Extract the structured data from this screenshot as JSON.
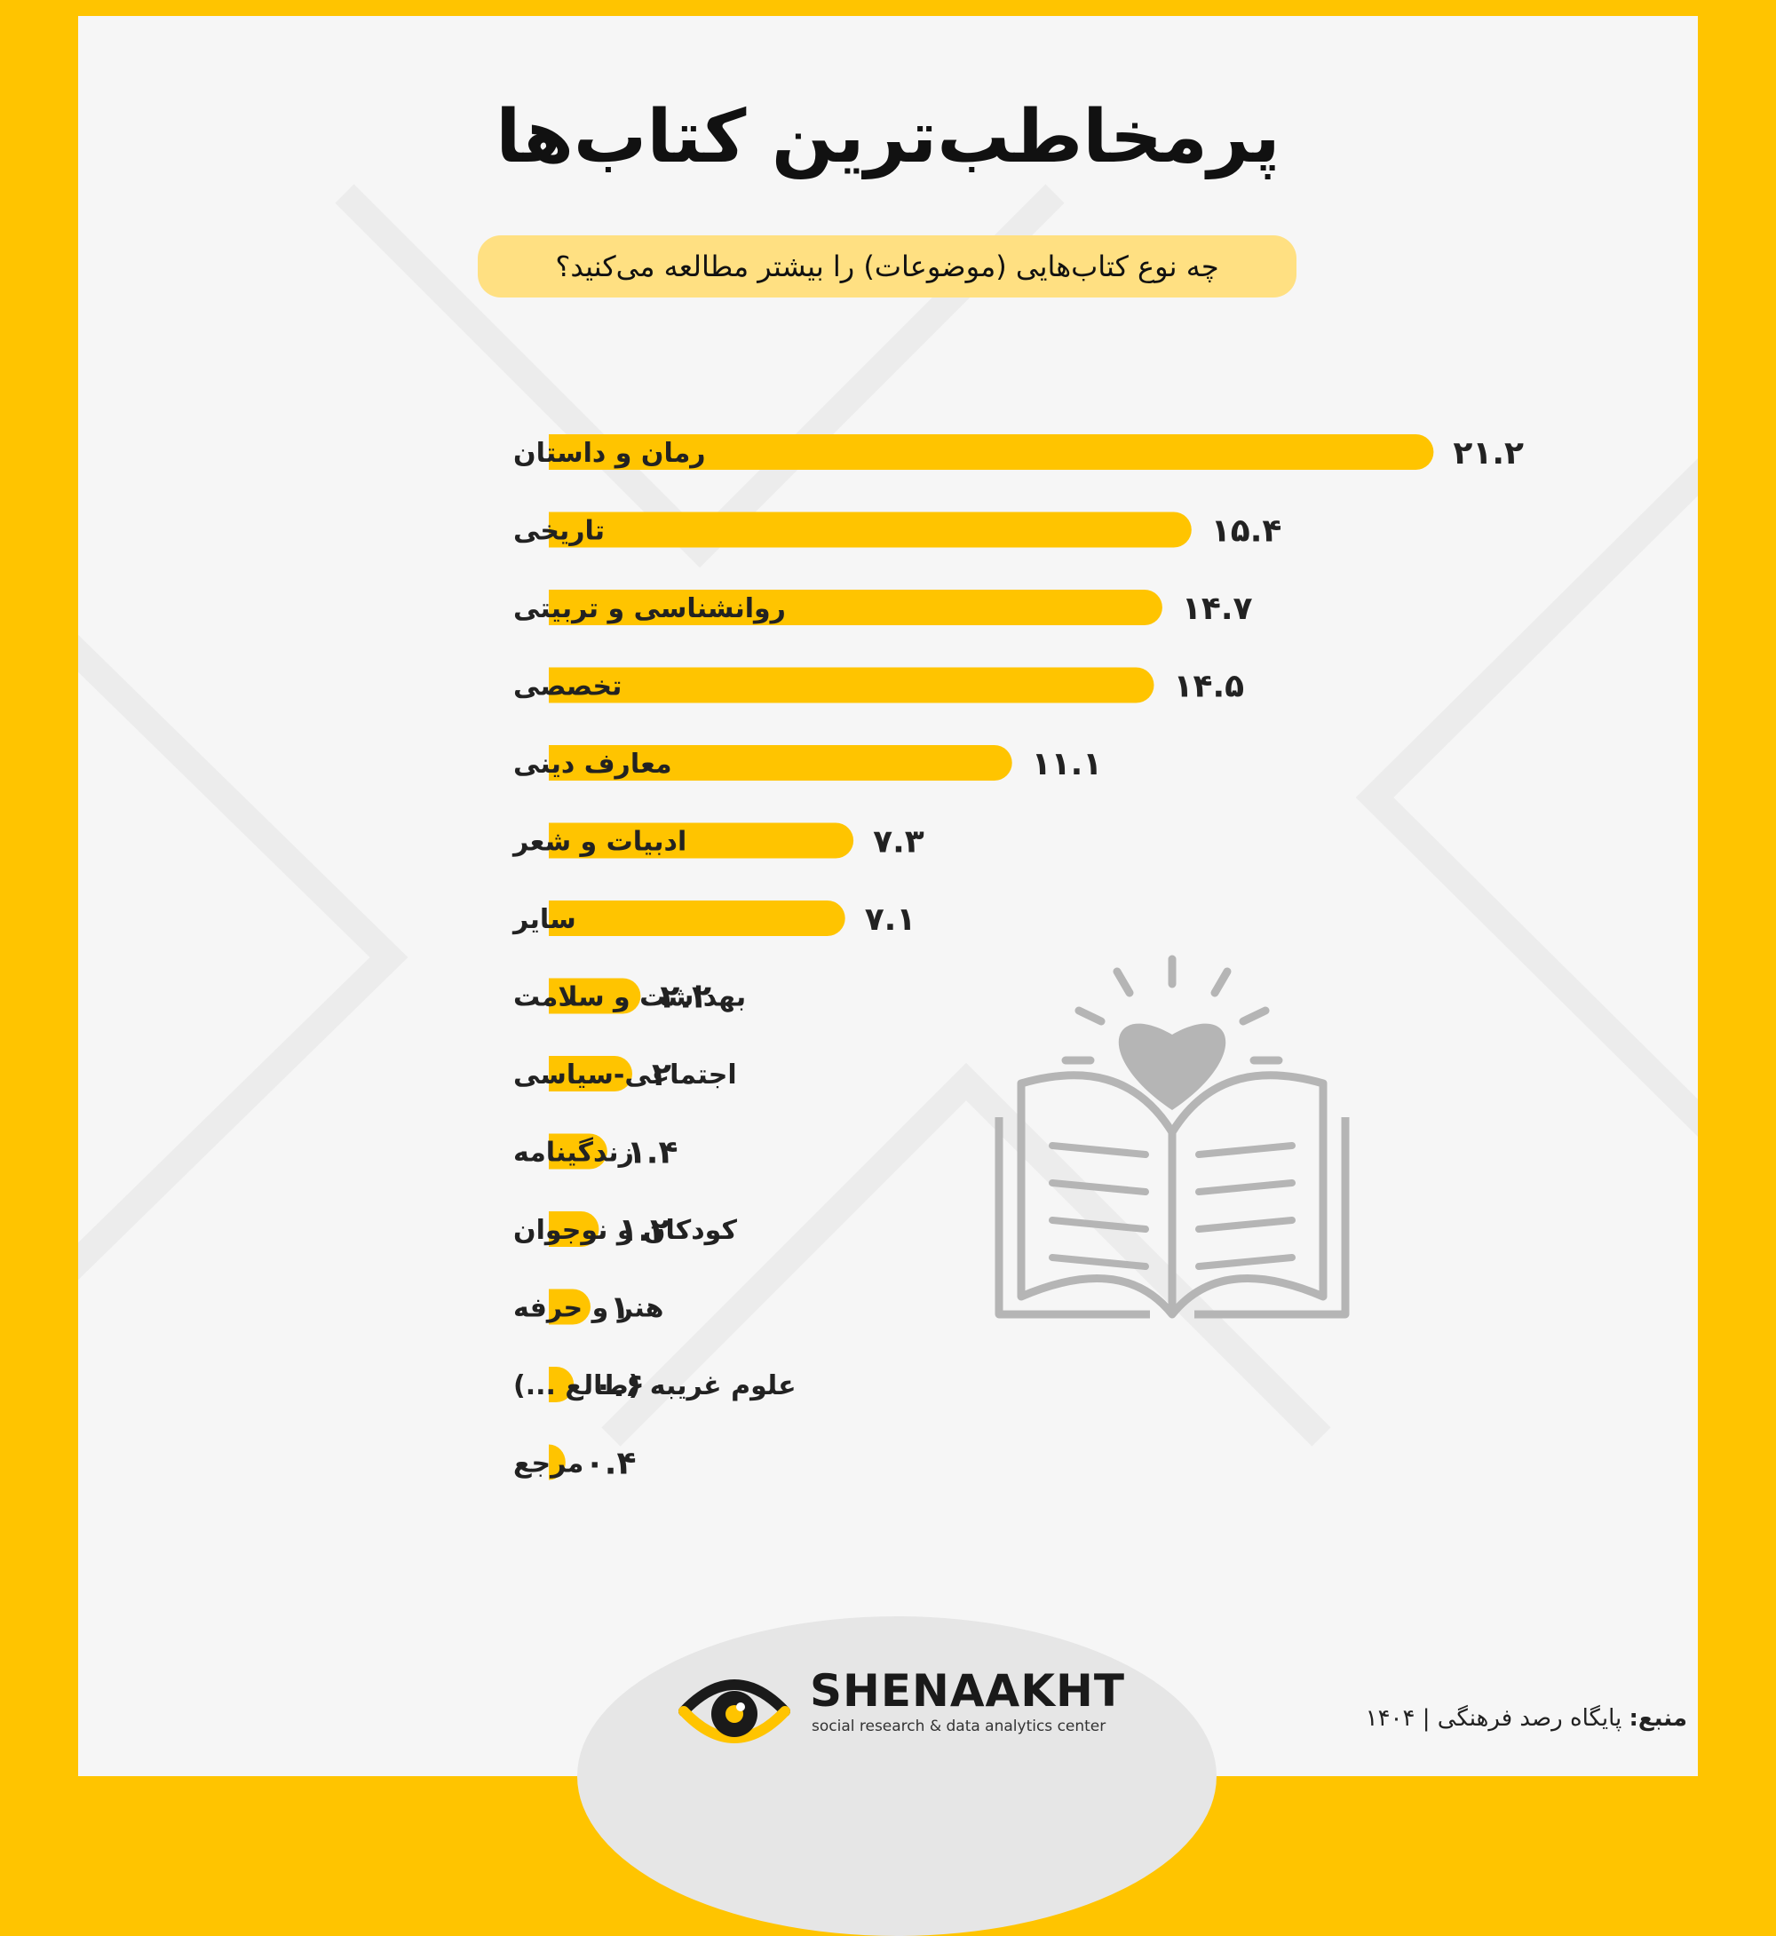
{
  "title": "پرمخاطب‌ترین کتاب‌ها",
  "subtitle": "چه نوع کتاب‌هایی (موضوعات) را بیشتر مطالعه می‌کنید؟",
  "chart_data": {
    "type": "bar",
    "orientation": "horizontal",
    "categories": [
      "رمان و داستان",
      "تاریخی",
      "روانشناسی و تربیتی",
      "تخصصی",
      "معارف دینی",
      "ادبیات و شعر",
      "سایر",
      "بهداشت و سلامت",
      "اجتماعی-سیاسی",
      "زندگینامه",
      "کودکان و نوجوان",
      "هنر و حرفه",
      "علوم غریبه (طالع ...)",
      "مرجع"
    ],
    "values": [
      21.2,
      15.4,
      14.7,
      14.5,
      11.1,
      7.3,
      7.1,
      2.2,
      2,
      1.4,
      1.2,
      1,
      0.6,
      0.4
    ],
    "value_labels": [
      "۲۱.۲",
      "۱۵.۴",
      "۱۴.۷",
      "۱۴.۵",
      "۱۱.۱",
      "۷.۳",
      "۷.۱",
      "۲.۲",
      "۲",
      "۱.۴",
      "۱.۲",
      "۱",
      "۰.۶",
      "۰.۴"
    ],
    "bar_color": "#FFC400",
    "grid": false,
    "legend": "none"
  },
  "footer": {
    "brand_name": "SHENAAKHT",
    "brand_tagline": "social research & data analytics center",
    "source_label": "منبع:",
    "source_text": "پایگاه رصد فرهنگی | ۱۴۰۴"
  },
  "colors": {
    "accent": "#FFC400",
    "pill": "#FFE082",
    "illustration": "#B5B5B5",
    "text": "#222222"
  },
  "icons": [
    "book-heart-illustration",
    "eye-logo-icon"
  ]
}
